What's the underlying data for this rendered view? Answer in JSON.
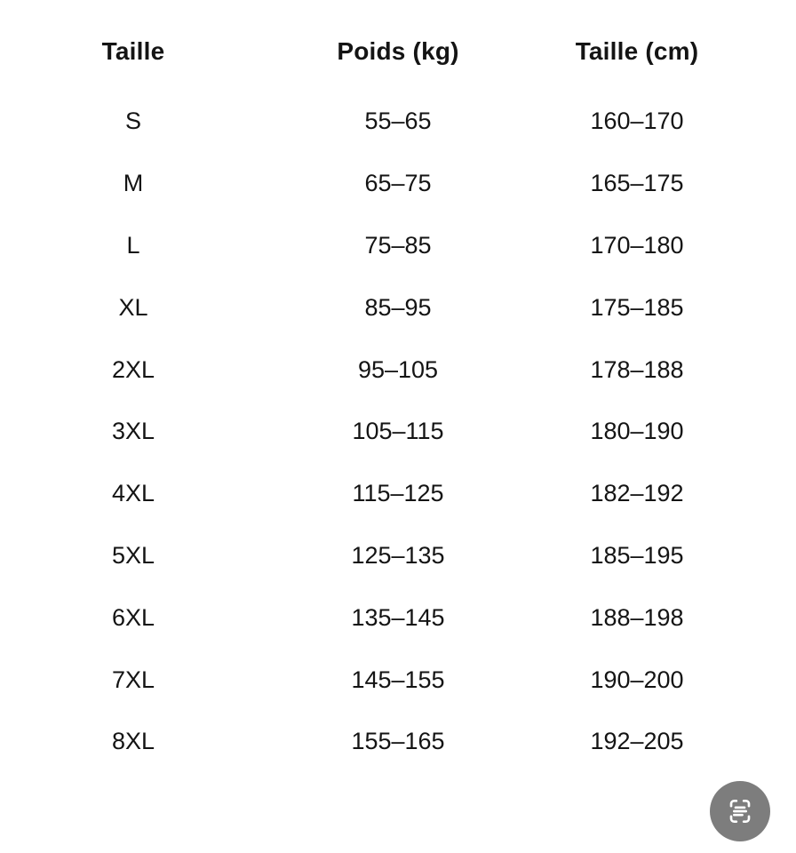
{
  "table": {
    "headers": [
      "Taille",
      "Poids (kg)",
      "Taille (cm)"
    ],
    "rows": [
      [
        "S",
        "55–65",
        "160–170"
      ],
      [
        "M",
        "65–75",
        "165–175"
      ],
      [
        "L",
        "75–85",
        "170–180"
      ],
      [
        "XL",
        "85–95",
        "175–185"
      ],
      [
        "2XL",
        "95–105",
        "178–188"
      ],
      [
        "3XL",
        "105–115",
        "180–190"
      ],
      [
        "4XL",
        "115–125",
        "182–192"
      ],
      [
        "5XL",
        "125–135",
        "185–195"
      ],
      [
        "6XL",
        "135–145",
        "188–198"
      ],
      [
        "7XL",
        "145–155",
        "190–200"
      ],
      [
        "8XL",
        "155–165",
        "192–205"
      ]
    ]
  },
  "fab": {
    "icon": "scan-text-icon",
    "background": "#7d7d7d",
    "glyph_color": "#ffffff"
  },
  "colors": {
    "page_background": "#ffffff",
    "text": "#141414"
  }
}
